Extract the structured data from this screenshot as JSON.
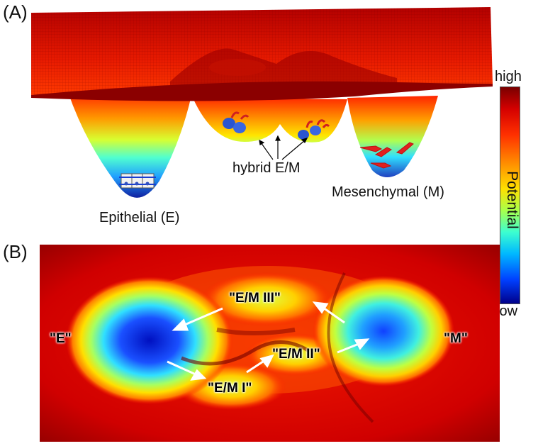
{
  "panel_a": {
    "label": "(A)",
    "annotations": {
      "epithelial": "Epithelial (E)",
      "hybrid": "hybrid E/M",
      "mesenchymal": "Mesenchymal (M)"
    }
  },
  "colorbar": {
    "high": "high",
    "low": "low",
    "title": "Potential"
  },
  "panel_b": {
    "label": "(B)",
    "states": {
      "e": "\"E\"",
      "m": "\"M\"",
      "em1": "\"E/M I\"",
      "em2": "\"E/M II\"",
      "em3": "\"E/M III\""
    }
  },
  "colors": {
    "high": "#8b0000",
    "low": "#00008b",
    "arrow_b": "#ffffff"
  }
}
